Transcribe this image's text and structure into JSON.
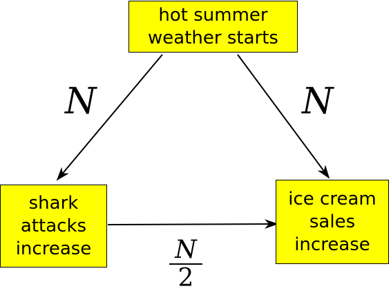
{
  "nodes": {
    "weather": {
      "line1": "hot summer",
      "line2": "weather starts"
    },
    "shark": {
      "line1": "shark",
      "line2": "attacks",
      "line3": "increase"
    },
    "ice": {
      "line1": "ice cream",
      "line2": "sales",
      "line3": "increase"
    }
  },
  "edges": {
    "weather_to_shark": {
      "label": "N"
    },
    "weather_to_ice": {
      "label": "N"
    },
    "shark_to_ice": {
      "numerator": "N",
      "denominator": "2"
    }
  },
  "colors": {
    "node_fill": "#ffff00",
    "line": "#000000"
  }
}
